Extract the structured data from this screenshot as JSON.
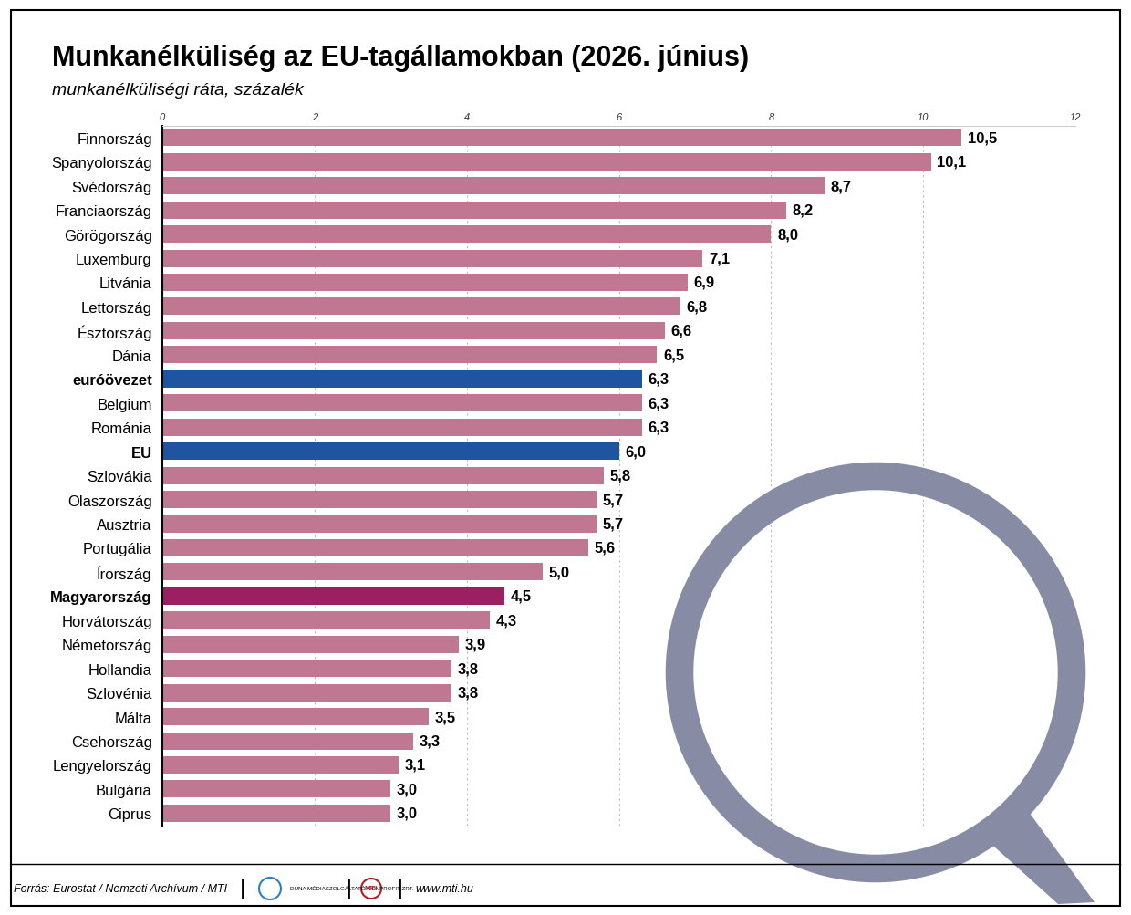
{
  "chart_data": {
    "type": "bar",
    "orientation": "horizontal",
    "title": "Munkanélküliség az EU-tagállamokban (2026. június)",
    "subtitle": "munkanélküliségi ráta, százalék",
    "categories": [
      "Finnország",
      "Spanyolország",
      "Svédország",
      "Franciaország",
      "Görögország",
      "Luxemburg",
      "Litvánia",
      "Lettország",
      "Észtország",
      "Dánia",
      "euróövezet",
      "Belgium",
      "Románia",
      "EU",
      "Szlovákia",
      "Olaszország",
      "Ausztria",
      "Portugália",
      "Írország",
      "Magyarország",
      "Horvátország",
      "Németország",
      "Hollandia",
      "Szlovénia",
      "Málta",
      "Csehország",
      "Lengyelország",
      "Bulgária",
      "Ciprus"
    ],
    "values": [
      10.5,
      10.1,
      8.7,
      8.2,
      8.0,
      7.1,
      6.9,
      6.8,
      6.6,
      6.5,
      6.3,
      6.3,
      6.3,
      6.0,
      5.8,
      5.7,
      5.7,
      5.6,
      5.0,
      4.5,
      4.3,
      3.9,
      3.8,
      3.8,
      3.5,
      3.3,
      3.1,
      3.0,
      3.0
    ],
    "value_labels": [
      "10,5",
      "10,1",
      "8,7",
      "8,2",
      "8,0",
      "7,1",
      "6,9",
      "6,8",
      "6,6",
      "6,5",
      "6,3",
      "6,3",
      "6,3",
      "6,0",
      "5,8",
      "5,7",
      "5,7",
      "5,6",
      "5,0",
      "4,5",
      "4,3",
      "3,9",
      "3,8",
      "3,8",
      "3,5",
      "3,3",
      "3,1",
      "3,0",
      "3,0"
    ],
    "color": "#c07892",
    "colors": [
      "#c07892",
      "#c07892",
      "#c07892",
      "#c07892",
      "#c07892",
      "#c07892",
      "#c07892",
      "#c07892",
      "#c07892",
      "#c07892",
      "#1f55a0",
      "#c07892",
      "#c07892",
      "#1f55a0",
      "#c07892",
      "#c07892",
      "#c07892",
      "#c07892",
      "#c07892",
      "#9c1f62",
      "#c07892",
      "#c07892",
      "#c07892",
      "#c07892",
      "#c07892",
      "#c07892",
      "#c07892",
      "#c07892",
      "#c07892"
    ],
    "xlim": [
      0,
      12
    ],
    "xticks": [
      0,
      2,
      4,
      6,
      8,
      10,
      12
    ],
    "grid": true,
    "data_labels": true,
    "annotations": [
      "Forrás: Eurostat / Nemzeti Archívum / MTI",
      "DUNA MÉDIASZOLGÁLTATÓ NONPROFIT ZRT.",
      "MTI",
      "www.mti.hu"
    ]
  }
}
